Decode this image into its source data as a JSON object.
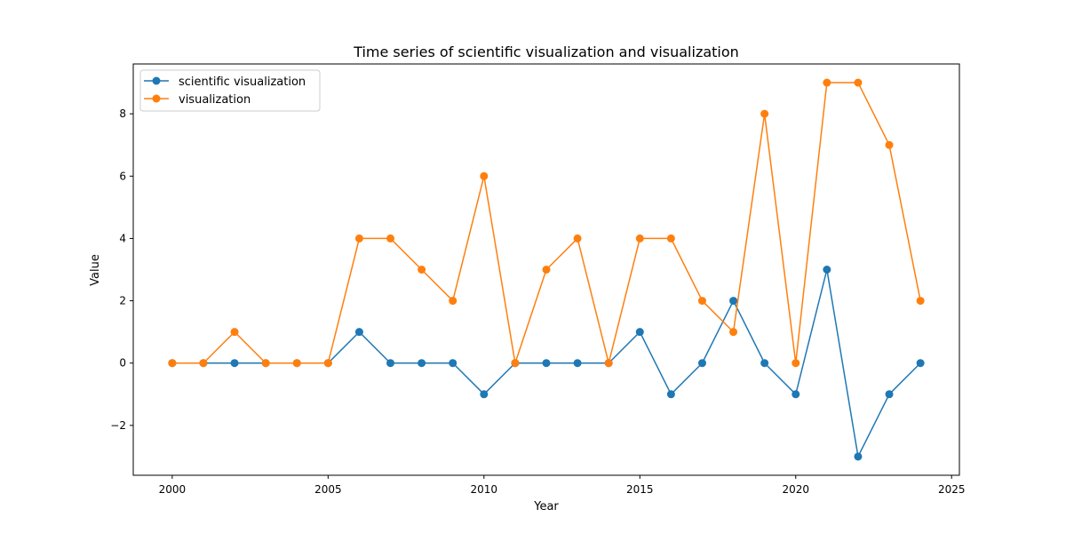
{
  "chart_data": {
    "type": "line",
    "title": "Time series of scientific visualization and visualization",
    "xlabel": "Year",
    "ylabel": "Value",
    "x": [
      2000,
      2001,
      2002,
      2003,
      2004,
      2005,
      2006,
      2007,
      2008,
      2009,
      2010,
      2011,
      2012,
      2013,
      2014,
      2015,
      2016,
      2017,
      2018,
      2019,
      2020,
      2021,
      2022,
      2023,
      2024
    ],
    "xlim": [
      1998.75,
      2025.25
    ],
    "ylim": [
      -3.6,
      9.6
    ],
    "xticks": [
      2000,
      2005,
      2010,
      2015,
      2020,
      2025
    ],
    "xtick_labels": [
      "2000",
      "2005",
      "2010",
      "2015",
      "2020",
      "2025"
    ],
    "yticks": [
      -2,
      0,
      2,
      4,
      6,
      8
    ],
    "ytick_labels": [
      "−2",
      "0",
      "2",
      "4",
      "6",
      "8"
    ],
    "grid": false,
    "legend_position": "top-left",
    "series": [
      {
        "name": "scientific visualization",
        "color": "#1f77b4",
        "values": [
          0,
          0,
          0,
          0,
          0,
          0,
          1,
          0,
          0,
          0,
          -1,
          0,
          0,
          0,
          0,
          1,
          -1,
          0,
          2,
          0,
          -1,
          3,
          -3,
          -1,
          0
        ]
      },
      {
        "name": "visualization",
        "color": "#ff7f0e",
        "values": [
          0,
          0,
          1,
          0,
          0,
          0,
          4,
          4,
          3,
          2,
          6,
          0,
          3,
          4,
          0,
          4,
          4,
          2,
          1,
          8,
          0,
          9,
          9,
          7,
          2
        ]
      }
    ]
  }
}
